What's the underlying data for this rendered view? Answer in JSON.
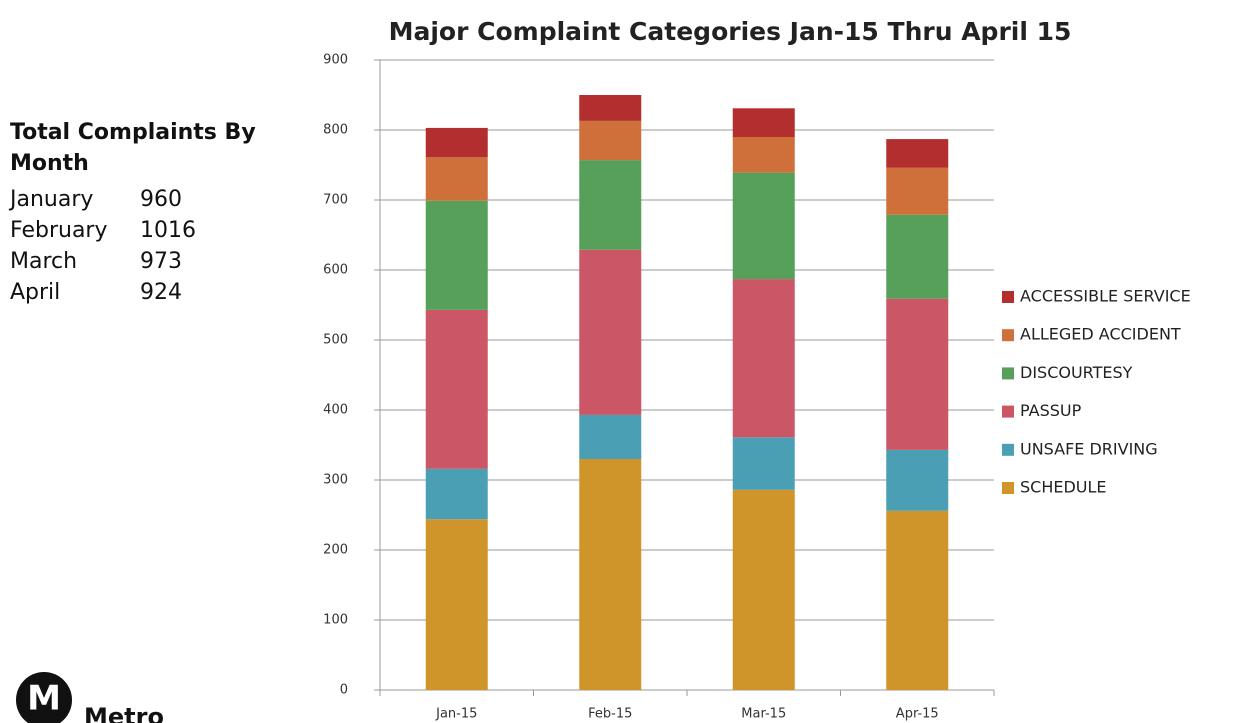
{
  "chart_data": {
    "type": "stacked-bar",
    "title": "Major Complaint Categories Jan-15 Thru April 15",
    "categories": [
      "Jan-15",
      "Feb-15",
      "Mar-15",
      "Apr-15"
    ],
    "series": [
      {
        "name": "SCHEDULE",
        "color": "#d0952a",
        "values": [
          244,
          330,
          286,
          256
        ]
      },
      {
        "name": "UNSAFE DRIVING",
        "color": "#4a9fb5",
        "values": [
          72,
          63,
          75,
          87
        ]
      },
      {
        "name": "PASSUP",
        "color": "#cb5666",
        "values": [
          227,
          236,
          226,
          216
        ]
      },
      {
        "name": "DISCOURTESY",
        "color": "#57a05a",
        "values": [
          156,
          128,
          152,
          120
        ]
      },
      {
        "name": "ALLEGED ACCIDENT",
        "color": "#cf703a",
        "values": [
          62,
          56,
          51,
          67
        ]
      },
      {
        "name": "ACCESSIBLE SERVICE",
        "color": "#b32e2e",
        "values": [
          42,
          37,
          41,
          41
        ]
      }
    ],
    "ylim": [
      0,
      900
    ],
    "yticks": [
      0,
      100,
      200,
      300,
      400,
      500,
      600,
      700,
      800,
      900
    ],
    "grid": true,
    "legend": "right"
  },
  "side_panel": {
    "heading": [
      "Total Complaints By",
      "Month"
    ],
    "rows": [
      [
        "January",
        960
      ],
      [
        "February",
        1016
      ],
      [
        "March",
        973
      ],
      [
        "April",
        924
      ]
    ]
  },
  "logo": {
    "mark": "M",
    "text": "Metro"
  }
}
